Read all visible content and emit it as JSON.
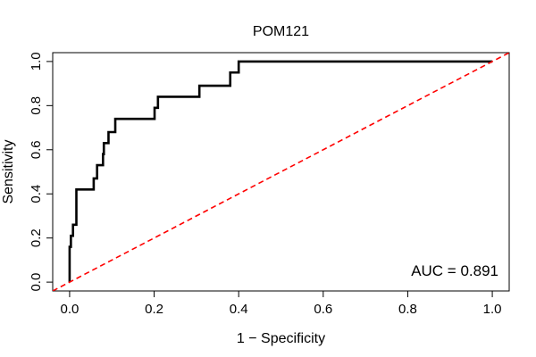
{
  "chart_data": {
    "type": "line",
    "title": "POM121",
    "xlabel": "1 − Specificity",
    "ylabel": "Sensitivity",
    "xlim": [
      -0.04,
      1.04
    ],
    "ylim": [
      -0.04,
      1.04
    ],
    "x_ticks": [
      0.0,
      0.2,
      0.4,
      0.6,
      0.8,
      1.0
    ],
    "x_tick_labels": [
      "0.0",
      "0.2",
      "0.4",
      "0.6",
      "0.8",
      "1.0"
    ],
    "y_ticks": [
      0.0,
      0.2,
      0.4,
      0.6,
      0.8,
      1.0
    ],
    "y_tick_labels": [
      "0.0",
      "0.2",
      "0.4",
      "0.6",
      "0.8",
      "1.0"
    ],
    "grid": false,
    "annotation": "AUC = 0.891",
    "series": [
      {
        "color": "#000000",
        "style": "solid",
        "x": [
          0.0,
          0.0,
          0.003,
          0.003,
          0.008,
          0.008,
          0.016,
          0.016,
          0.022,
          0.022,
          0.026,
          0.026,
          0.057,
          0.057,
          0.065,
          0.065,
          0.079,
          0.079,
          0.081,
          0.081,
          0.087,
          0.087,
          0.092,
          0.092,
          0.108,
          0.108,
          0.201,
          0.201,
          0.209,
          0.209,
          0.307,
          0.307,
          0.38,
          0.38,
          0.4,
          0.4,
          1.0
        ],
        "y": [
          0.0,
          0.16,
          0.16,
          0.21,
          0.21,
          0.26,
          0.26,
          0.42,
          0.42,
          0.42,
          0.42,
          0.42,
          0.42,
          0.47,
          0.47,
          0.53,
          0.53,
          0.58,
          0.58,
          0.63,
          0.63,
          0.63,
          0.63,
          0.68,
          0.68,
          0.74,
          0.74,
          0.79,
          0.79,
          0.84,
          0.84,
          0.89,
          0.89,
          0.95,
          0.95,
          1.0,
          1.0
        ]
      },
      {
        "color": "#ff0000",
        "style": "dashed",
        "x": [
          -0.04,
          1.04
        ],
        "y": [
          -0.04,
          1.04
        ]
      }
    ]
  }
}
